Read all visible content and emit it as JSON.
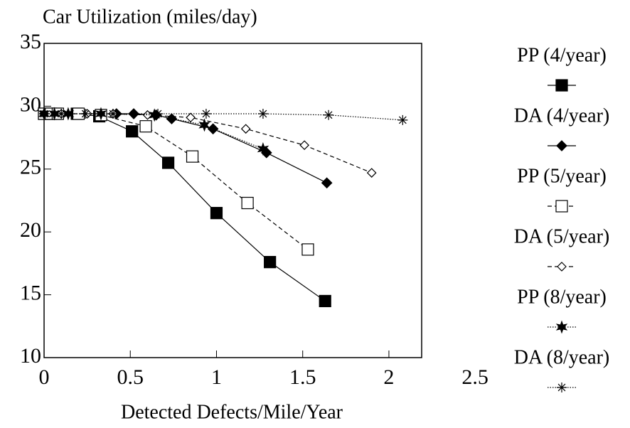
{
  "chart_data": {
    "type": "line",
    "title": "Car Utilization (miles/day)",
    "x_label": "Detected Defects/Mile/Year",
    "xlim": [
      0,
      2.19
    ],
    "xticks": [
      0,
      0.5,
      1,
      1.5,
      2,
      2.5
    ],
    "ylim": [
      10,
      35
    ],
    "yticks": [
      10,
      15,
      20,
      25,
      30,
      35
    ],
    "legend": "right",
    "series": [
      {
        "name": "PP (4/year)",
        "color": "#000000",
        "marker": "square",
        "filled": true,
        "dash": "solid",
        "x": [
          0,
          0.03,
          0.07,
          0.19,
          0.32,
          0.51,
          0.72,
          1.0,
          1.31,
          1.63
        ],
        "values": [
          29.4,
          29.4,
          29.4,
          29.4,
          29.2,
          28.0,
          25.5,
          21.5,
          17.6,
          14.5
        ]
      },
      {
        "name": "DA (4/year)",
        "color": "#000000",
        "marker": "diamond",
        "filled": true,
        "dash": "solid",
        "x": [
          0,
          0.04,
          0.1,
          0.2,
          0.42,
          0.52,
          0.65,
          0.74,
          0.98,
          1.29,
          1.64
        ],
        "values": [
          29.4,
          29.4,
          29.4,
          29.4,
          29.4,
          29.4,
          29.3,
          29.0,
          28.2,
          26.3,
          23.9
        ]
      },
      {
        "name": "PP (5/year)",
        "color": "#000000",
        "marker": "square",
        "filled": false,
        "dash": "dashed",
        "x": [
          0,
          0.04,
          0.08,
          0.2,
          0.33,
          0.59,
          0.86,
          1.18,
          1.53
        ],
        "values": [
          29.4,
          29.4,
          29.4,
          29.4,
          29.3,
          28.4,
          26.0,
          22.3,
          18.6
        ]
      },
      {
        "name": "DA (5/year)",
        "color": "#000000",
        "marker": "diamond",
        "filled": false,
        "dash": "dashed",
        "x": [
          0,
          0.1,
          0.25,
          0.4,
          0.6,
          0.85,
          1.17,
          1.51,
          1.9
        ],
        "values": [
          29.4,
          29.4,
          29.4,
          29.4,
          29.3,
          29.1,
          28.2,
          26.9,
          24.7
        ]
      },
      {
        "name": "PP (8/year)",
        "color": "#000000",
        "marker": "star",
        "filled": true,
        "dash": "dotted",
        "x": [
          0,
          0.06,
          0.14,
          0.33,
          0.64,
          0.93,
          1.27
        ],
        "values": [
          29.4,
          29.4,
          29.4,
          29.4,
          29.3,
          28.5,
          26.6
        ]
      },
      {
        "name": "DA (8/year)",
        "color": "#000000",
        "marker": "asterisk",
        "filled": false,
        "dash": "dotted",
        "x": [
          0,
          0.1,
          0.24,
          0.4,
          0.66,
          0.94,
          1.27,
          1.65,
          2.08
        ],
        "values": [
          29.4,
          29.4,
          29.4,
          29.4,
          29.4,
          29.4,
          29.4,
          29.3,
          28.9
        ]
      }
    ]
  }
}
